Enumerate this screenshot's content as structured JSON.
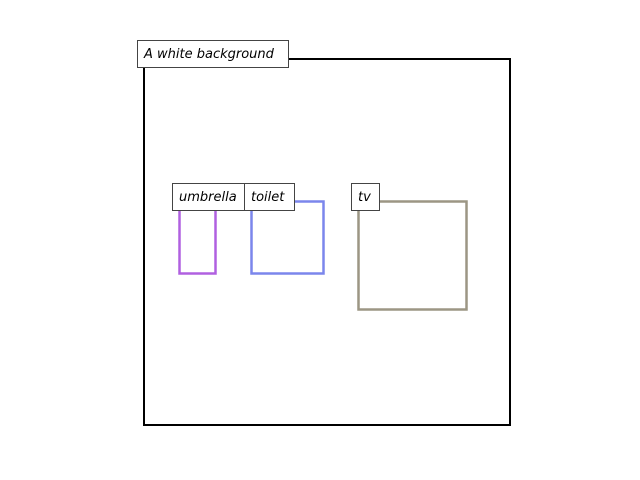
{
  "diagram": {
    "caption": "A white background",
    "frame_color": "#000000",
    "label_border_color": "#444444",
    "label_fill_color": "#ffffff",
    "objects": [
      {
        "label": "umbrella",
        "color": "#b060e0"
      },
      {
        "label": "toilet",
        "color": "#7b86ec"
      },
      {
        "label": "tv",
        "color": "#9c9684"
      }
    ]
  }
}
